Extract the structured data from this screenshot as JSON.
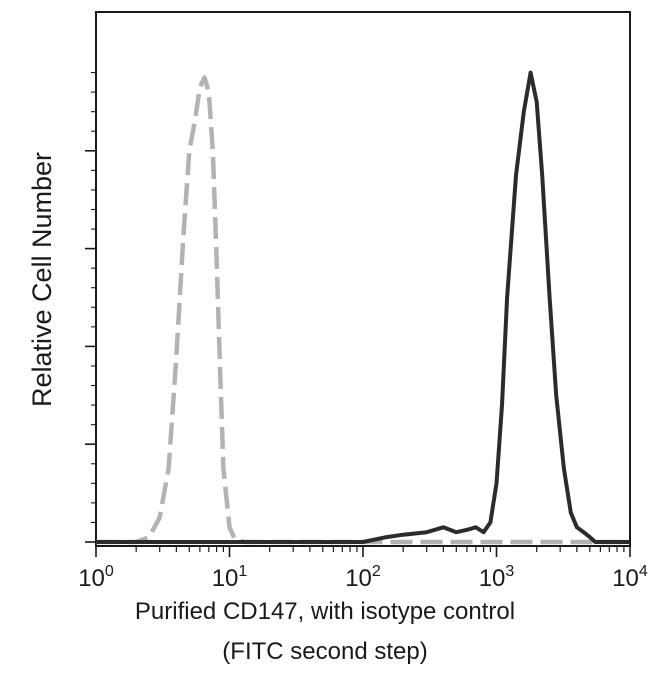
{
  "chart_data": {
    "type": "line",
    "title": "",
    "xlabel_lines": [
      "Purified CD147, with isotype control",
      "(FITC second step)"
    ],
    "ylabel": "Relative Cell Number",
    "x_scale": "log",
    "xlim": [
      1,
      10000
    ],
    "ylim": [
      0,
      100
    ],
    "x_tick_labels": [
      {
        "base": "10",
        "exp": "0"
      },
      {
        "base": "10",
        "exp": "1"
      },
      {
        "base": "10",
        "exp": "2"
      },
      {
        "base": "10",
        "exp": "3"
      },
      {
        "base": "10",
        "exp": "4"
      }
    ],
    "grid": false,
    "legend": "none",
    "series": [
      {
        "style": "dashed",
        "color": "#b3b3b3",
        "x": [
          1,
          2,
          2.5,
          3,
          3.5,
          4,
          4.5,
          5,
          5.5,
          6,
          6.5,
          7,
          7.5,
          8,
          8.5,
          9,
          10,
          11,
          13,
          20,
          10000
        ],
        "y": [
          0,
          0,
          1,
          5,
          15,
          38,
          62,
          80,
          86,
          93,
          95,
          92,
          80,
          58,
          35,
          15,
          3,
          0.5,
          0,
          0,
          0
        ]
      },
      {
        "style": "solid",
        "color": "#2b2b2b",
        "x": [
          1,
          100,
          150,
          200,
          300,
          400,
          500,
          600,
          700,
          800,
          900,
          1000,
          1100,
          1200,
          1400,
          1600,
          1800,
          2000,
          2200,
          2500,
          2800,
          3200,
          3600,
          4000,
          4500,
          5000,
          5500,
          10000
        ],
        "y": [
          0,
          0,
          1,
          1.5,
          2,
          3,
          2,
          2.5,
          3,
          2,
          4,
          12,
          28,
          50,
          75,
          88,
          96,
          90,
          75,
          50,
          30,
          15,
          6,
          3,
          2,
          1,
          0,
          0
        ]
      }
    ]
  }
}
